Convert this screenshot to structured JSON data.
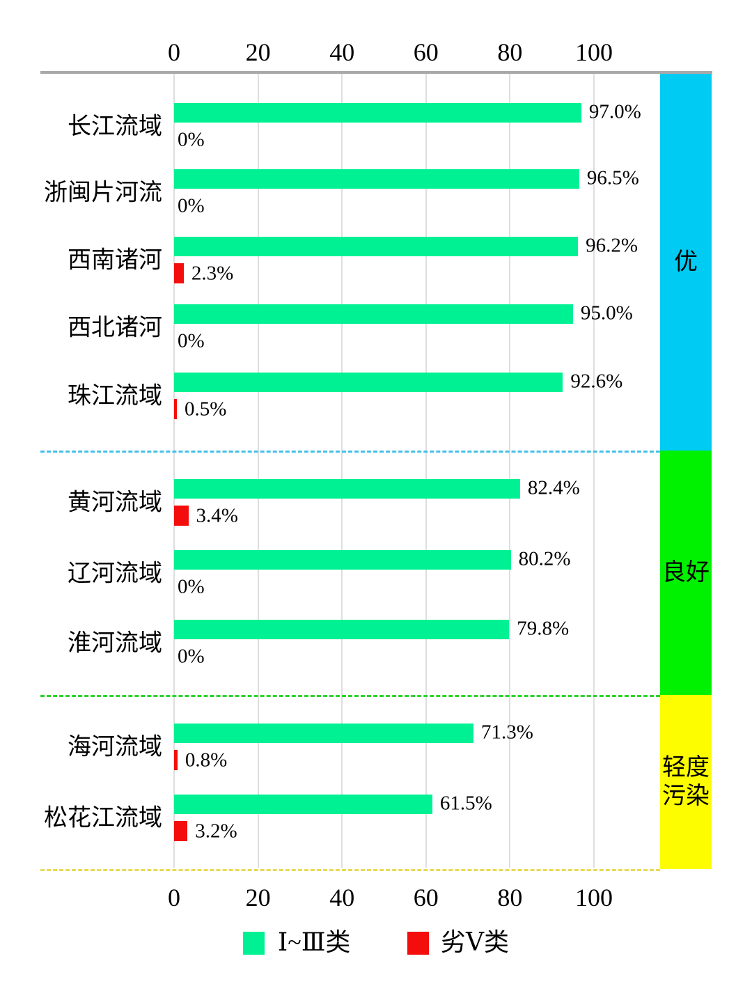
{
  "chart_data": {
    "type": "bar",
    "orientation": "horizontal",
    "title": "",
    "x_axis": {
      "ticks": [
        0,
        20,
        40,
        60,
        80,
        100
      ],
      "range": [
        0,
        128
      ],
      "shown_top": true,
      "shown_bottom": true
    },
    "grid": "vertical-light-gray",
    "series_names": [
      "Ⅰ~Ⅲ类",
      "劣Ⅴ类"
    ],
    "groups": [
      {
        "label": "优",
        "label_lines": [
          "优"
        ],
        "band_color": "#00CBF2",
        "separator_color": "#45BFE8",
        "rivers": [
          {
            "name": "长江流域",
            "good": 97.0,
            "good_label": "97.0%",
            "bad": 0,
            "bad_label": "0%"
          },
          {
            "name": "浙闽片河流",
            "good": 96.5,
            "good_label": "96.5%",
            "bad": 0,
            "bad_label": "0%"
          },
          {
            "name": "西南诸河",
            "good": 96.2,
            "good_label": "96.2%",
            "bad": 2.3,
            "bad_label": "2.3%"
          },
          {
            "name": "西北诸河",
            "good": 95.0,
            "good_label": "95.0%",
            "bad": 0,
            "bad_label": "0%"
          },
          {
            "name": "珠江流域",
            "good": 92.6,
            "good_label": "92.6%",
            "bad": 0.5,
            "bad_label": "0.5%"
          }
        ]
      },
      {
        "label": "良好",
        "label_lines": [
          "良好"
        ],
        "band_color": "#00F200",
        "separator_color": "#2FD32F",
        "rivers": [
          {
            "name": "黄河流域",
            "good": 82.4,
            "good_label": "82.4%",
            "bad": 3.4,
            "bad_label": "3.4%"
          },
          {
            "name": "辽河流域",
            "good": 80.2,
            "good_label": "80.2%",
            "bad": 0,
            "bad_label": "0%"
          },
          {
            "name": "淮河流域",
            "good": 79.8,
            "good_label": "79.8%",
            "bad": 0,
            "bad_label": "0%"
          }
        ]
      },
      {
        "label": "轻度污染",
        "label_lines": [
          "轻度",
          "污染"
        ],
        "band_color": "#FDFD00",
        "separator_color": "#E8DA55",
        "rivers": [
          {
            "name": "海河流域",
            "good": 71.3,
            "good_label": "71.3%",
            "bad": 0.8,
            "bad_label": "0.8%"
          },
          {
            "name": "松花江流域",
            "good": 61.5,
            "good_label": "61.5%",
            "bad": 3.2,
            "bad_label": "3.2%"
          }
        ]
      }
    ],
    "legend": [
      {
        "label": "Ⅰ~Ⅲ类",
        "color": "#00F193"
      },
      {
        "label": "劣Ⅴ类",
        "color": "#F30D0D"
      }
    ],
    "colors": {
      "bar_good": "#00F193",
      "bar_bad": "#F30D0D",
      "gridline": "#DEDEDE",
      "axis_line": "#A9A9A9",
      "text": "#000000",
      "background": "#FFFFFF"
    }
  }
}
